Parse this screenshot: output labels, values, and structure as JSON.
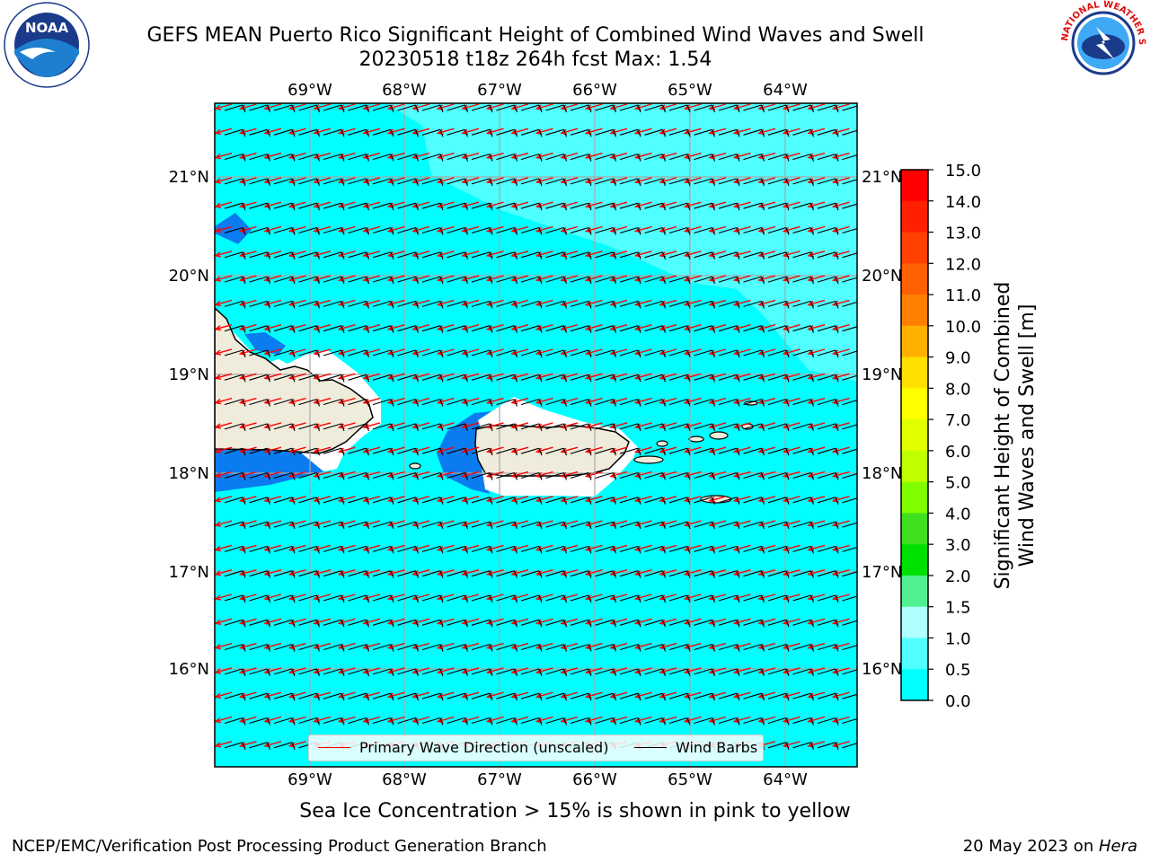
{
  "header": {
    "title_line1": "GEFS MEAN Puerto Rico Significant Height of Combined Wind Waves and Swell",
    "title_line2": "20230518 t18z 264h fcst   Max: 1.54"
  },
  "logos": {
    "left": {
      "icon": "noaa-logo",
      "text": "NOAA"
    },
    "right": {
      "icon": "nws-logo",
      "text": "NATIONAL WEATHER SERVICE"
    }
  },
  "map": {
    "lon_labels": [
      "69°W",
      "68°W",
      "67°W",
      "66°W",
      "65°W",
      "64°W"
    ],
    "lat_labels": [
      "21°N",
      "20°N",
      "19°N",
      "18°N",
      "17°N",
      "16°N"
    ],
    "ocean_color": "#00ffff",
    "land_color": "#efecdc",
    "legend": {
      "wave_label": "Primary Wave Direction (unscaled)",
      "wind_label": "Wind Barbs",
      "wave_color": "#ff0000",
      "wind_color": "#000000"
    }
  },
  "colorbar": {
    "label_line1": "Significant Height of Combined",
    "label_line2": "Wind Waves and Swell [m]",
    "ticks": [
      "15.0",
      "14.0",
      "13.0",
      "12.0",
      "11.0",
      "10.0",
      "9.0",
      "8.0",
      "7.0",
      "6.0",
      "5.0",
      "4.0",
      "3.0",
      "2.0",
      "1.5",
      "1.0",
      "0.5",
      "0.0"
    ],
    "colors_top_to_bottom": [
      "#ff0000",
      "#ff2000",
      "#ff4000",
      "#ff6000",
      "#ff8000",
      "#ffb000",
      "#ffe000",
      "#ffff00",
      "#e0ff00",
      "#c0ff00",
      "#80ff00",
      "#40e020",
      "#00e000",
      "#50f090",
      "#b0ffff",
      "#50ffff",
      "#00ffff",
      "#0080ff",
      "#0000ff"
    ]
  },
  "footer": {
    "sea_ice_note": "Sea Ice Concentration > 15% is shown in pink to yellow",
    "credit_left": "NCEP/EMC/Verification Post Processing Product Generation Branch",
    "credit_right_date": "20 May 2023 on ",
    "credit_right_host": "Hera"
  }
}
